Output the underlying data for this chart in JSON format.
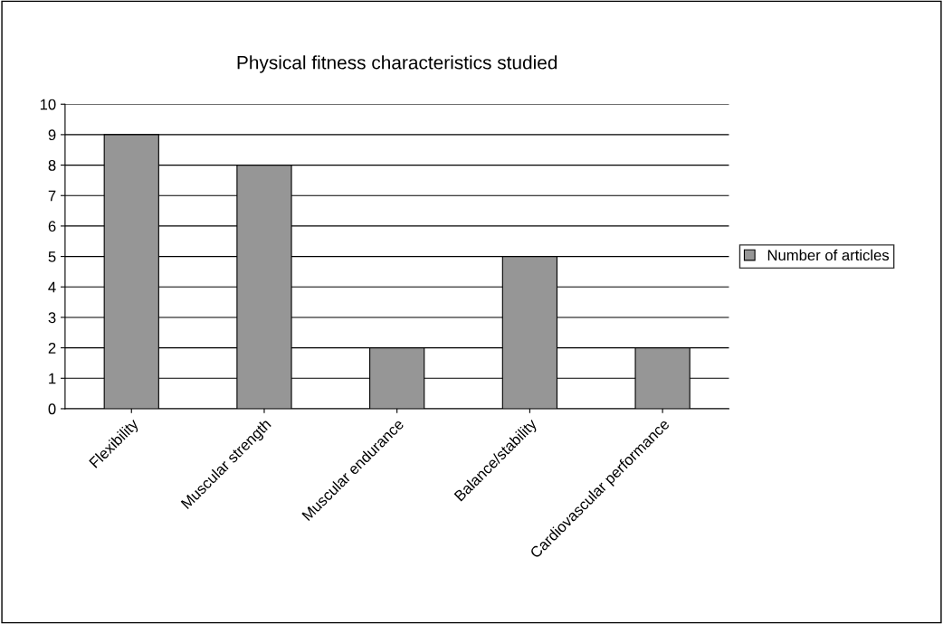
{
  "chart_data": {
    "type": "bar",
    "title": "Physical fitness characteristics studied",
    "categories": [
      "Flexibility",
      "Muscular strength",
      "Muscular endurance",
      "Balance/stability",
      "Cardiovascular performance"
    ],
    "series": [
      {
        "name": "Number of articles",
        "color": "#969696",
        "values": [
          9,
          8,
          2,
          5,
          2
        ]
      }
    ],
    "ylim": [
      0,
      10
    ],
    "yticks": [
      0,
      1,
      2,
      3,
      4,
      5,
      6,
      7,
      8,
      9,
      10
    ],
    "grid": "y",
    "legend": "right"
  }
}
